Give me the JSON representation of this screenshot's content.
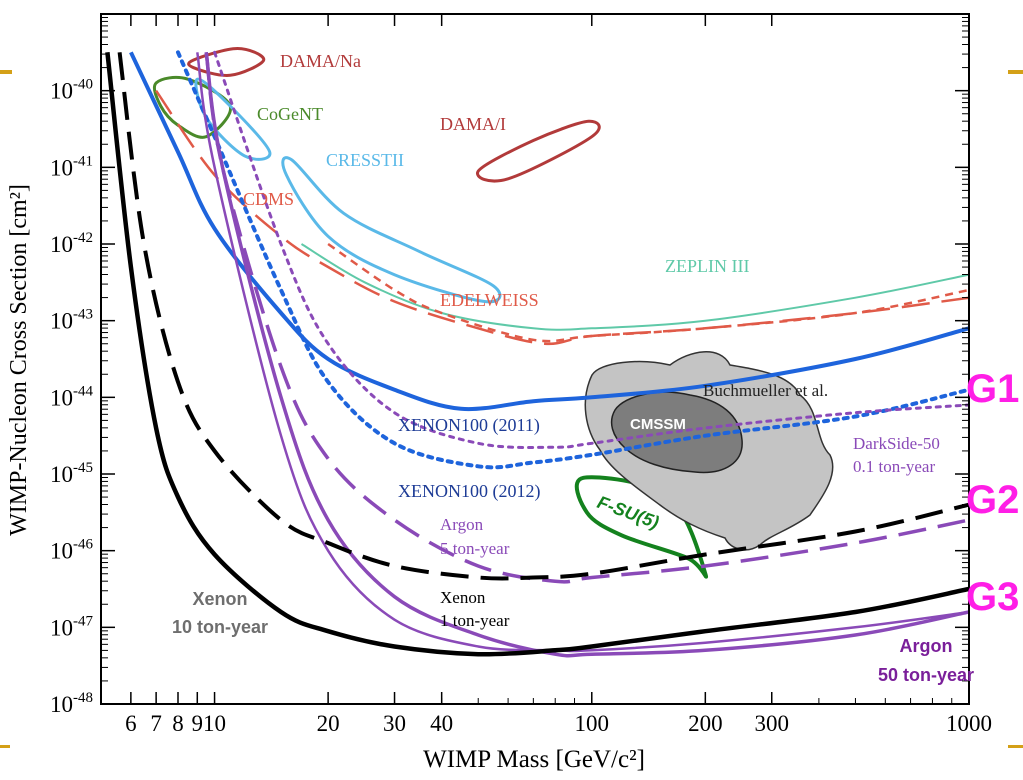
{
  "chart_data": {
    "type": "line",
    "title": "",
    "xlabel": "WIMP Mass [GeV/c²]",
    "ylabel": "WIMP-Nucleon Cross Section [cm²]",
    "x_scale": "log",
    "y_scale": "log",
    "xlim": [
      5,
      1000
    ],
    "ylim": [
      1e-48,
      1e-39
    ],
    "x_ticks": [
      {
        "value": 6,
        "label": "6"
      },
      {
        "value": 7,
        "label": "7"
      },
      {
        "value": 8,
        "label": "8"
      },
      {
        "value": 9,
        "label": "9"
      },
      {
        "value": 10,
        "label": "10"
      },
      {
        "value": 20,
        "label": "20"
      },
      {
        "value": 30,
        "label": "30"
      },
      {
        "value": 40,
        "label": "40"
      },
      {
        "value": 100,
        "label": "100"
      },
      {
        "value": 200,
        "label": "200"
      },
      {
        "value": 300,
        "label": "300"
      },
      {
        "value": 1000,
        "label": "1000"
      }
    ],
    "y_ticks": [
      {
        "value": -48,
        "base": "10",
        "exp": "-48"
      },
      {
        "value": -47,
        "base": "10",
        "exp": "-47"
      },
      {
        "value": -46,
        "base": "10",
        "exp": "-46"
      },
      {
        "value": -45,
        "base": "10",
        "exp": "-45"
      },
      {
        "value": -44,
        "base": "10",
        "exp": "-44"
      },
      {
        "value": -43,
        "base": "10",
        "exp": "-43"
      },
      {
        "value": -42,
        "base": "10",
        "exp": "-42"
      },
      {
        "value": -41,
        "base": "10",
        "exp": "-41"
      },
      {
        "value": -40,
        "base": "10",
        "exp": "-40"
      }
    ],
    "series": [
      {
        "id": "zeplin",
        "color": "#5fc9a8",
        "style": "solid",
        "width": 2,
        "points": [
          [
            17,
            -42
          ],
          [
            25,
            -42.5
          ],
          [
            40,
            -42.9
          ],
          [
            70,
            -43.1
          ],
          [
            100,
            -43.1
          ],
          [
            200,
            -43
          ],
          [
            500,
            -42.7
          ],
          [
            1000,
            -42.4
          ]
        ]
      },
      {
        "id": "edelweiss",
        "color": "#e05a48",
        "style": "short-dash",
        "width": 2.5,
        "points": [
          [
            20,
            -42
          ],
          [
            30,
            -42.6
          ],
          [
            40,
            -42.9
          ],
          [
            70,
            -43.25
          ],
          [
            100,
            -43.2
          ],
          [
            200,
            -43.1
          ],
          [
            500,
            -42.9
          ],
          [
            1000,
            -42.6
          ]
        ]
      },
      {
        "id": "cdms",
        "color": "#e05a48",
        "style": "long-dash",
        "width": 2.5,
        "points": [
          [
            7,
            -40
          ],
          [
            10,
            -41.1
          ],
          [
            15,
            -41.9
          ],
          [
            20,
            -42.3
          ],
          [
            30,
            -42.75
          ],
          [
            50,
            -43.1
          ],
          [
            75,
            -43.3
          ],
          [
            100,
            -43.2
          ],
          [
            200,
            -43.1
          ],
          [
            500,
            -42.9
          ],
          [
            1000,
            -42.7
          ]
        ]
      },
      {
        "id": "xenon100-2011",
        "color": "#1e64dc",
        "style": "solid",
        "width": 4,
        "points": [
          [
            6,
            -39.5
          ],
          [
            8,
            -40.8
          ],
          [
            10,
            -41.8
          ],
          [
            15,
            -42.9
          ],
          [
            20,
            -43.5
          ],
          [
            30,
            -43.9
          ],
          [
            45,
            -44.15
          ],
          [
            70,
            -44.05
          ],
          [
            100,
            -44
          ],
          [
            200,
            -43.85
          ],
          [
            500,
            -43.5
          ],
          [
            1000,
            -43.1
          ]
        ]
      },
      {
        "id": "xenon100-2012",
        "color": "#1e64dc",
        "style": "dotted",
        "width": 4,
        "points": [
          [
            8,
            -39.5
          ],
          [
            10,
            -40.6
          ],
          [
            15,
            -42.6
          ],
          [
            20,
            -43.8
          ],
          [
            30,
            -44.6
          ],
          [
            50,
            -44.9
          ],
          [
            70,
            -44.85
          ],
          [
            100,
            -44.75
          ],
          [
            200,
            -44.5
          ],
          [
            500,
            -44.25
          ],
          [
            1000,
            -43.9
          ]
        ]
      },
      {
        "id": "darkside-50",
        "color": "#8a4ab8",
        "style": "dotted",
        "width": 3,
        "points": [
          [
            10,
            -39.5
          ],
          [
            15,
            -42
          ],
          [
            20,
            -43.3
          ],
          [
            30,
            -44.2
          ],
          [
            50,
            -44.6
          ],
          [
            80,
            -44.65
          ],
          [
            100,
            -44.6
          ],
          [
            200,
            -44.4
          ],
          [
            500,
            -44.2
          ],
          [
            1000,
            -44.1
          ]
        ]
      },
      {
        "id": "argon-5",
        "color": "#8a4ab8",
        "style": "long-dash",
        "width": 3.5,
        "points": [
          [
            9.5,
            -39.5
          ],
          [
            10.5,
            -41
          ],
          [
            15,
            -43.6
          ],
          [
            20,
            -44.8
          ],
          [
            30,
            -45.6
          ],
          [
            50,
            -46.2
          ],
          [
            80,
            -46.4
          ],
          [
            100,
            -46.35
          ],
          [
            200,
            -46.2
          ],
          [
            500,
            -45.9
          ],
          [
            1000,
            -45.6
          ]
        ]
      },
      {
        "id": "argon-50",
        "color": "#8a4ab8",
        "style": "solid",
        "width": 3.5,
        "points": [
          [
            9.5,
            -39.5
          ],
          [
            10.5,
            -41
          ],
          [
            15,
            -44
          ],
          [
            20,
            -45.6
          ],
          [
            30,
            -46.6
          ],
          [
            50,
            -47.1
          ],
          [
            80,
            -47.35
          ],
          [
            100,
            -47.35
          ],
          [
            200,
            -47.3
          ],
          [
            500,
            -47.1
          ],
          [
            1000,
            -46.8
          ]
        ]
      },
      {
        "id": "argon-50b",
        "color": "#8a4ab8",
        "style": "solid",
        "width": 2.5,
        "points": [
          [
            9,
            -39.5
          ],
          [
            10,
            -41
          ],
          [
            15,
            -44.5
          ],
          [
            20,
            -46
          ],
          [
            30,
            -46.9
          ],
          [
            50,
            -47.25
          ],
          [
            80,
            -47.3
          ],
          [
            100,
            -47.3
          ],
          [
            200,
            -47.2
          ],
          [
            500,
            -47
          ],
          [
            1000,
            -46.8
          ]
        ]
      },
      {
        "id": "xenon-1",
        "color": "#000000",
        "style": "long-dash",
        "width": 4,
        "points": [
          [
            5.6,
            -39.5
          ],
          [
            6.5,
            -42
          ],
          [
            8,
            -43.8
          ],
          [
            10,
            -44.7
          ],
          [
            15,
            -45.6
          ],
          [
            20,
            -45.9
          ],
          [
            30,
            -46.2
          ],
          [
            50,
            -46.35
          ],
          [
            70,
            -46.35
          ],
          [
            100,
            -46.3
          ],
          [
            200,
            -46.05
          ],
          [
            500,
            -45.75
          ],
          [
            1000,
            -45.4
          ]
        ]
      },
      {
        "id": "xenon-10",
        "color": "#000000",
        "style": "solid",
        "width": 4.5,
        "points": [
          [
            5.2,
            -39.5
          ],
          [
            6,
            -42.3
          ],
          [
            7,
            -44.4
          ],
          [
            8,
            -45.3
          ],
          [
            10,
            -46.05
          ],
          [
            15,
            -46.8
          ],
          [
            20,
            -47.05
          ],
          [
            30,
            -47.25
          ],
          [
            50,
            -47.35
          ],
          [
            80,
            -47.3
          ],
          [
            100,
            -47.25
          ],
          [
            200,
            -47.05
          ],
          [
            500,
            -46.8
          ],
          [
            1000,
            -46.5
          ]
        ]
      }
    ],
    "regions": [
      {
        "id": "dama-na",
        "color": "#b23a3a",
        "points": [
          [
            8.8,
            -39.6
          ],
          [
            11.5,
            -39.45
          ],
          [
            13.5,
            -39.6
          ],
          [
            11,
            -39.8
          ],
          [
            8.8,
            -39.7
          ]
        ]
      },
      {
        "id": "dama-i",
        "color": "#b23a3a",
        "points": [
          [
            50,
            -41.05
          ],
          [
            70,
            -40.65
          ],
          [
            98,
            -40.4
          ],
          [
            100,
            -40.6
          ],
          [
            60,
            -41.15
          ]
        ]
      },
      {
        "id": "cogent",
        "color": "#4a8a2a",
        "points": [
          [
            7,
            -39.9
          ],
          [
            8.5,
            -39.85
          ],
          [
            11,
            -40.2
          ],
          [
            9.5,
            -40.6
          ],
          [
            8,
            -40.45
          ],
          [
            7.2,
            -40.2
          ]
        ]
      },
      {
        "id": "cresst-1",
        "color": "#5ab9e8",
        "points": [
          [
            9,
            -39.85
          ],
          [
            11,
            -40.2
          ],
          [
            14,
            -40.8
          ],
          [
            12,
            -40.85
          ],
          [
            9.5,
            -40.35
          ]
        ]
      },
      {
        "id": "cresst-2",
        "color": "#5ab9e8",
        "points": [
          [
            16,
            -40.9
          ],
          [
            22,
            -41.6
          ],
          [
            35,
            -42.1
          ],
          [
            55,
            -42.55
          ],
          [
            52,
            -42.75
          ],
          [
            30,
            -42.4
          ],
          [
            20,
            -41.9
          ],
          [
            15.5,
            -41.1
          ]
        ]
      },
      {
        "id": "f-su5",
        "color": "#14821e",
        "points": [
          [
            95,
            -45.05
          ],
          [
            160,
            -45.3
          ],
          [
            200,
            -46.3
          ],
          [
            180,
            -46.1
          ],
          [
            120,
            -45.8
          ],
          [
            97,
            -45.5
          ]
        ]
      }
    ],
    "annotations": [
      {
        "id": "dama-na",
        "text": "DAMA/Na",
        "color": "#b23a3a"
      },
      {
        "id": "cogent",
        "text": "CoGeNT",
        "color": "#4a8a2a"
      },
      {
        "id": "dama-i",
        "text": "DAMA/I",
        "color": "#b23a3a"
      },
      {
        "id": "cresst",
        "text": "CRESSTII",
        "color": "#5ab9e8"
      },
      {
        "id": "cdms",
        "text": "CDMS",
        "color": "#e05a48"
      },
      {
        "id": "zeplin",
        "text": "ZEPLIN III",
        "color": "#5fc9a8"
      },
      {
        "id": "edelweiss",
        "text": "EDELWEISS",
        "color": "#e05a48"
      },
      {
        "id": "buchmueller",
        "text": "Buchmueller et al.",
        "color": "#222222"
      },
      {
        "id": "cmssm",
        "text": "CMSSM",
        "color": "#ffffff"
      },
      {
        "id": "xenon100-2011",
        "text": "XENON100 (2011)",
        "color": "#1e3c96"
      },
      {
        "id": "xenon100-2012",
        "text": "XENON100 (2012)",
        "color": "#1e3c96"
      },
      {
        "id": "darkside-1",
        "text": "DarkSide-50",
        "color": "#8a4ab8"
      },
      {
        "id": "darkside-2",
        "text": "0.1 ton-year",
        "color": "#8a4ab8"
      },
      {
        "id": "fsu5",
        "text": "F-SU(5)",
        "color": "#14821e"
      },
      {
        "id": "argon5-1",
        "text": "Argon",
        "color": "#8a4ab8"
      },
      {
        "id": "argon5-2",
        "text": "5 ton-year",
        "color": "#8a4ab8"
      },
      {
        "id": "xenon10-1",
        "text": "Xenon",
        "color": "#6e6e6e"
      },
      {
        "id": "xenon10-2",
        "text": "10 ton-year",
        "color": "#6e6e6e"
      },
      {
        "id": "xenon1-1",
        "text": "Xenon",
        "color": "#000000"
      },
      {
        "id": "xenon1-2",
        "text": "1 ton-year",
        "color": "#000000"
      },
      {
        "id": "argon50-1",
        "text": "Argon",
        "color": "#7a1f9a"
      },
      {
        "id": "argon50-2",
        "text": "50 ton-year",
        "color": "#7a1f9a"
      },
      {
        "id": "g1",
        "text": "G1",
        "color": "#ff1ee6"
      },
      {
        "id": "g2",
        "text": "G2",
        "color": "#ff1ee6"
      },
      {
        "id": "g3",
        "text": "G3",
        "color": "#ff1ee6"
      }
    ]
  }
}
